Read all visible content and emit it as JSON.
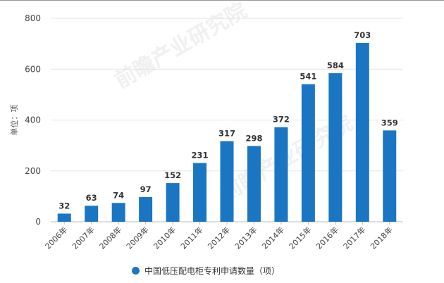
{
  "chart_data": {
    "type": "bar",
    "categories": [
      "2006年",
      "2007年",
      "2008年",
      "2009年",
      "2010年",
      "2011年",
      "2012年",
      "2013年",
      "2014年",
      "2015年",
      "2016年",
      "2017年",
      "2018年"
    ],
    "series": [
      {
        "name": "中国低压配电柜专利申请数量（项）",
        "values": [
          32,
          63,
          74,
          97,
          152,
          231,
          317,
          298,
          372,
          541,
          584,
          703,
          359
        ]
      }
    ],
    "ylabel": "单位：项",
    "ylim": [
      0,
      800
    ],
    "yticks": [
      0,
      200,
      400,
      600,
      800
    ],
    "grid": true,
    "legend": "bottom-center",
    "bar_color": "#1a76c2"
  },
  "legend": {
    "label": "中国低压配电柜专利申请数量（项）"
  },
  "watermark": {
    "text": "前瞻产业研究院"
  }
}
